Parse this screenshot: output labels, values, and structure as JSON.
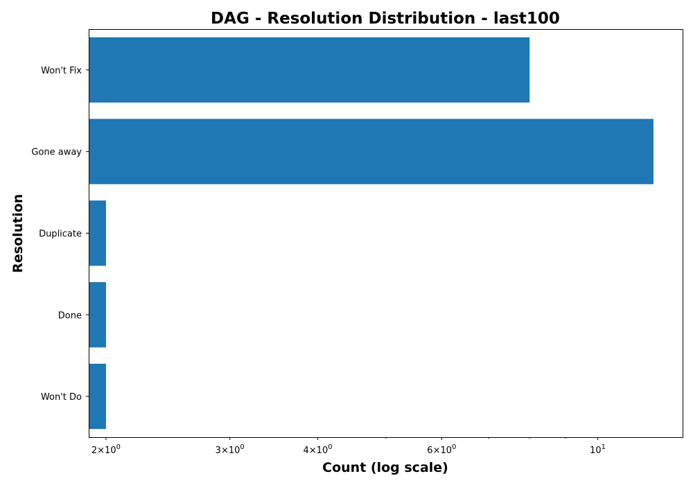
{
  "chart_data": {
    "type": "bar",
    "orientation": "horizontal",
    "title": "DAG - Resolution Distribution - last100",
    "xlabel": "Count (log scale)",
    "ylabel": "Resolution",
    "x_scale": "log",
    "xlim": [
      1.89,
      13.2
    ],
    "grid": false,
    "legend": "none",
    "bar_color": "#1f77b4",
    "categories": [
      "Won't Fix",
      "Gone away",
      "Duplicate",
      "Done",
      "Won't Do"
    ],
    "values": [
      8,
      12,
      2,
      2,
      2
    ],
    "x_major_ticks": [
      {
        "value": 2,
        "base": "2×10",
        "exp": "0"
      },
      {
        "value": 3,
        "base": "3×10",
        "exp": "0"
      },
      {
        "value": 4,
        "base": "4×10",
        "exp": "0"
      },
      {
        "value": 6,
        "base": "6×10",
        "exp": "0"
      },
      {
        "value": 10,
        "base": "10",
        "exp": "1"
      }
    ],
    "x_minor_ticks": [
      5,
      7,
      8,
      9
    ]
  }
}
